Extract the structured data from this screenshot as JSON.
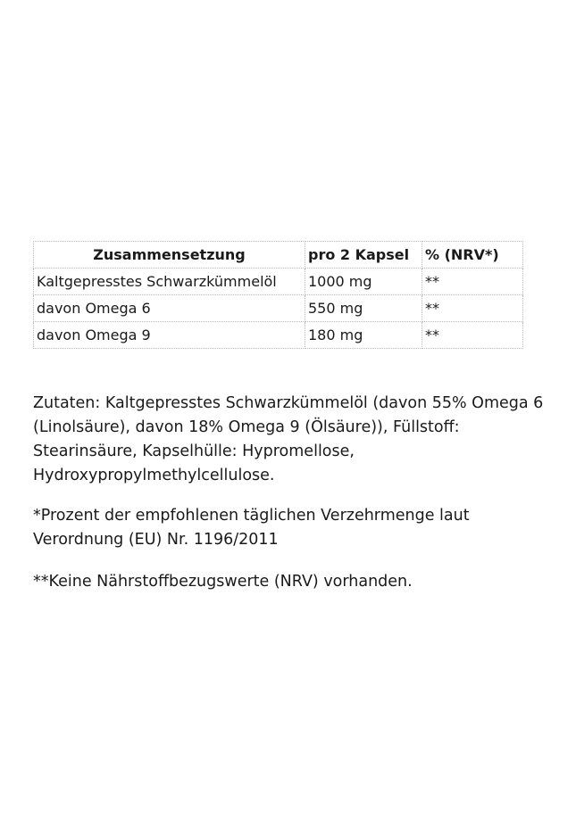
{
  "table": {
    "headers": [
      "Zusammensetzung",
      "pro 2 Kapsel",
      "% (NRV*)"
    ],
    "rows": [
      [
        "Kaltgepresstes Schwarzkümmelöl",
        "1000 mg",
        "**"
      ],
      [
        "davon Omega 6",
        "550 mg",
        "**"
      ],
      [
        "davon Omega 9",
        "180 mg",
        "**"
      ]
    ]
  },
  "ingredients": "Zutaten: Kaltgepresstes Schwarzkümmelöl (davon 55% Omega 6 (Linolsäure), davon 18% Omega 9 (Ölsäure)), Füllstoff: Stearinsäure, Kapselhülle: Hypromellose, Hydroxypropylmethylcellulose.",
  "footnote1": "*Prozent der empfohlenen täglichen Verzehrmenge laut Verordnung (EU) Nr. 1196/2011",
  "footnote2": "**Keine Nährstoffbezugswerte (NRV) vorhanden."
}
